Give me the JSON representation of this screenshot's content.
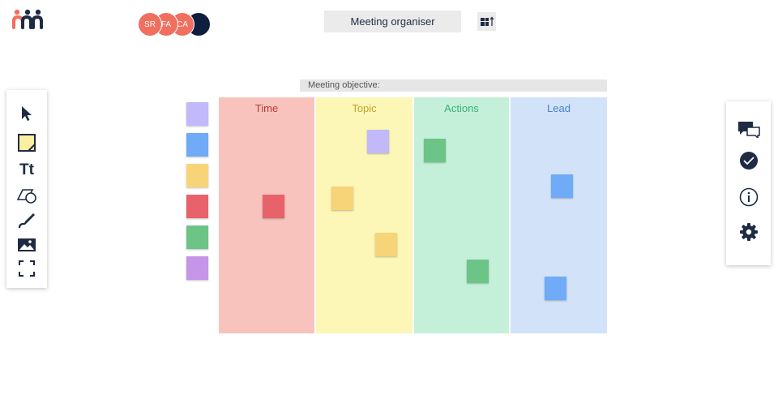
{
  "header": {
    "title": "Meeting organiser",
    "avatars": [
      {
        "initials": "SR",
        "color": "#f06f5f"
      },
      {
        "initials": "FA",
        "color": "#f06f5f"
      },
      {
        "initials": "CA",
        "color": "#f06f5f"
      },
      {
        "initials": "",
        "color": "#0e1f3d"
      }
    ]
  },
  "board": {
    "objective_label": "Meeting objective:",
    "columns": [
      {
        "title": "Time",
        "bg": "#f9c3bd",
        "color": "#b33a35"
      },
      {
        "title": "Topic",
        "bg": "#fcf6b7",
        "color": "#c1a32e"
      },
      {
        "title": "Actions",
        "bg": "#c4f0da",
        "color": "#38b179"
      },
      {
        "title": "Lead",
        "bg": "#d2e2f9",
        "color": "#4a84c8"
      }
    ]
  },
  "palette": {
    "colors": [
      "#c1b9fa",
      "#6fabf7",
      "#f8d479",
      "#e7626a",
      "#6cc487",
      "#c495e8"
    ]
  },
  "left_toolbar": {
    "tools": [
      "cursor-icon",
      "sticky-note-icon",
      "text-icon",
      "shapes-icon",
      "pen-icon",
      "image-icon",
      "frame-icon"
    ],
    "text_tool_label": "Tt"
  },
  "right_toolbar": {
    "tools": [
      "chat-icon",
      "done-icon",
      "info-icon",
      "settings-icon"
    ]
  }
}
